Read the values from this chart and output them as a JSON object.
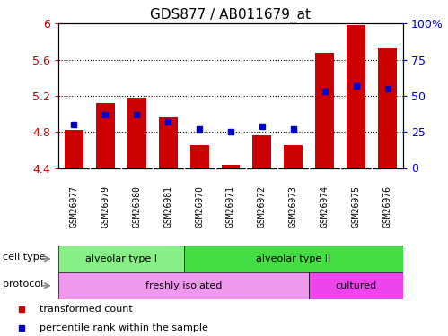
{
  "title": "GDS877 / AB011679_at",
  "samples": [
    "GSM26977",
    "GSM26979",
    "GSM26980",
    "GSM26981",
    "GSM26970",
    "GSM26971",
    "GSM26972",
    "GSM26973",
    "GSM26974",
    "GSM26975",
    "GSM26976"
  ],
  "bar_values": [
    4.82,
    5.12,
    5.18,
    4.96,
    4.65,
    4.43,
    4.76,
    4.65,
    5.68,
    5.98,
    5.72
  ],
  "percentile_values": [
    30,
    37,
    37,
    32,
    27,
    25,
    29,
    27,
    53,
    57,
    55
  ],
  "ylim_left": [
    4.4,
    6.0
  ],
  "ylim_right": [
    0,
    100
  ],
  "yticks_left": [
    4.4,
    4.8,
    5.2,
    5.6,
    6.0
  ],
  "ytick_labels_left": [
    "4.4",
    "4.8",
    "5.2",
    "5.6",
    "6"
  ],
  "yticks_right": [
    0,
    25,
    50,
    75,
    100
  ],
  "ytick_labels_right": [
    "0",
    "25",
    "50",
    "75",
    "100%"
  ],
  "bar_color": "#cc0000",
  "dot_color": "#0000cc",
  "grid_ticks": [
    4.8,
    5.2,
    5.6
  ],
  "cell_type_groups": [
    {
      "label": "alveolar type I",
      "start": 0,
      "end": 3,
      "color": "#88ee88"
    },
    {
      "label": "alveolar type II",
      "start": 4,
      "end": 10,
      "color": "#44dd44"
    }
  ],
  "protocol_groups": [
    {
      "label": "freshly isolated",
      "start": 0,
      "end": 7,
      "color": "#ee99ee"
    },
    {
      "label": "cultured",
      "start": 8,
      "end": 10,
      "color": "#ee44ee"
    }
  ],
  "cell_type_label": "cell type",
  "protocol_label": "protocol",
  "legend_items": [
    {
      "label": "transformed count",
      "color": "#cc0000"
    },
    {
      "label": "percentile rank within the sample",
      "color": "#0000cc"
    }
  ],
  "tick_label_color_left": "#cc0000",
  "tick_label_color_right": "#0000cc",
  "bar_width": 0.6,
  "xtick_bg": "#dddddd"
}
